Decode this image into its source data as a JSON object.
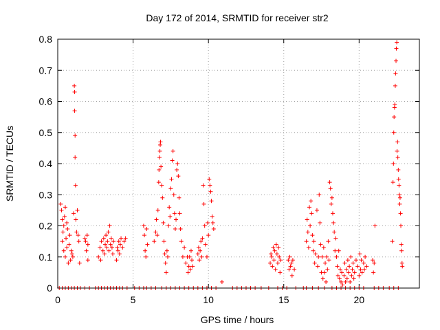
{
  "chart_data": {
    "type": "scatter",
    "title": "Day 172 of 2014, SRMTID for receiver str2",
    "xlabel": "GPS time / hours",
    "ylabel": "SRMTID / TECUs",
    "xlim": [
      0,
      24
    ],
    "ylim": [
      0,
      0.8
    ],
    "grid": true,
    "marker": "+",
    "color": "#ff0000",
    "xticks": [
      0,
      5,
      10,
      15,
      20
    ],
    "yticks": [
      0,
      0.1,
      0.2,
      0.3,
      0.4,
      0.5,
      0.6,
      0.7,
      0.8
    ],
    "xtick_labels": [
      "0",
      "5",
      "10",
      "15",
      "20"
    ],
    "ytick_labels": [
      "0",
      "0.1",
      "0.2",
      "0.3",
      "0.4",
      "0.5",
      "0.6",
      "0.7",
      "0.8"
    ],
    "series": [
      {
        "name": "str2",
        "points": [
          [
            0.2,
            0.27
          ],
          [
            0.25,
            0.25
          ],
          [
            0.3,
            0.22
          ],
          [
            0.3,
            0.15
          ],
          [
            0.35,
            0.18
          ],
          [
            0.4,
            0.2
          ],
          [
            0.4,
            0.12
          ],
          [
            0.45,
            0.23
          ],
          [
            0.5,
            0.26
          ],
          [
            0.5,
            0.1
          ],
          [
            0.55,
            0.16
          ],
          [
            0.6,
            0.21
          ],
          [
            0.6,
            0.13
          ],
          [
            0.65,
            0.19
          ],
          [
            0.7,
            0.08
          ],
          [
            0.75,
            0.14
          ],
          [
            0.8,
            0.17
          ],
          [
            0.85,
            0.09
          ],
          [
            0.9,
            0.12
          ],
          [
            0.95,
            0.11
          ],
          [
            1.0,
            0.1
          ],
          [
            1.05,
            0.24
          ],
          [
            1.1,
            0.65
          ],
          [
            1.12,
            0.63
          ],
          [
            1.12,
            0.57
          ],
          [
            1.15,
            0.49
          ],
          [
            1.15,
            0.42
          ],
          [
            1.18,
            0.33
          ],
          [
            1.2,
            0.22
          ],
          [
            1.25,
            0.18
          ],
          [
            1.3,
            0.25
          ],
          [
            1.35,
            0.17
          ],
          [
            1.4,
            0.15
          ],
          [
            1.45,
            0.08
          ],
          [
            1.8,
            0.16
          ],
          [
            1.85,
            0.15
          ],
          [
            1.9,
            0.12
          ],
          [
            1.95,
            0.17
          ],
          [
            2.0,
            0.09
          ],
          [
            2.0,
            0.14
          ],
          [
            2.7,
            0.1
          ],
          [
            2.8,
            0.13
          ],
          [
            2.85,
            0.09
          ],
          [
            2.9,
            0.15
          ],
          [
            3.0,
            0.12
          ],
          [
            3.05,
            0.16
          ],
          [
            3.1,
            0.11
          ],
          [
            3.15,
            0.14
          ],
          [
            3.2,
            0.17
          ],
          [
            3.25,
            0.13
          ],
          [
            3.3,
            0.15
          ],
          [
            3.35,
            0.18
          ],
          [
            3.4,
            0.12
          ],
          [
            3.45,
            0.2
          ],
          [
            3.5,
            0.14
          ],
          [
            3.55,
            0.16
          ],
          [
            3.6,
            0.13
          ],
          [
            3.65,
            0.11
          ],
          [
            3.7,
            0.15
          ],
          [
            3.9,
            0.09
          ],
          [
            3.95,
            0.13
          ],
          [
            4.0,
            0.12
          ],
          [
            4.05,
            0.15
          ],
          [
            4.1,
            0.11
          ],
          [
            4.15,
            0.14
          ],
          [
            4.2,
            0.16
          ],
          [
            4.3,
            0.13
          ],
          [
            4.4,
            0.15
          ],
          [
            4.5,
            0.16
          ],
          [
            5.7,
            0.2
          ],
          [
            5.75,
            0.17
          ],
          [
            5.8,
            0.12
          ],
          [
            5.85,
            0.1
          ],
          [
            5.9,
            0.19
          ],
          [
            5.95,
            0.14
          ],
          [
            6.4,
            0.15
          ],
          [
            6.5,
            0.18
          ],
          [
            6.55,
            0.22
          ],
          [
            6.6,
            0.17
          ],
          [
            6.65,
            0.25
          ],
          [
            6.7,
            0.34
          ],
          [
            6.72,
            0.38
          ],
          [
            6.75,
            0.42
          ],
          [
            6.78,
            0.44
          ],
          [
            6.8,
            0.46
          ],
          [
            6.82,
            0.47
          ],
          [
            6.85,
            0.39
          ],
          [
            6.9,
            0.33
          ],
          [
            6.95,
            0.29
          ],
          [
            7.0,
            0.21
          ],
          [
            7.05,
            0.15
          ],
          [
            7.1,
            0.11
          ],
          [
            7.15,
            0.08
          ],
          [
            7.2,
            0.05
          ],
          [
            7.25,
            0.12
          ],
          [
            7.3,
            0.1
          ],
          [
            7.35,
            0.2
          ],
          [
            7.4,
            0.26
          ],
          [
            7.45,
            0.23
          ],
          [
            7.5,
            0.32
          ],
          [
            7.55,
            0.35
          ],
          [
            7.6,
            0.41
          ],
          [
            7.65,
            0.44
          ],
          [
            7.7,
            0.3
          ],
          [
            7.75,
            0.24
          ],
          [
            7.8,
            0.19
          ],
          [
            7.85,
            0.22
          ],
          [
            7.9,
            0.38
          ],
          [
            7.95,
            0.4
          ],
          [
            8.0,
            0.36
          ],
          [
            8.05,
            0.29
          ],
          [
            8.1,
            0.24
          ],
          [
            8.15,
            0.19
          ],
          [
            8.2,
            0.15
          ],
          [
            8.3,
            0.1
          ],
          [
            8.4,
            0.13
          ],
          [
            8.5,
            0.08
          ],
          [
            8.6,
            0.1
          ],
          [
            8.65,
            0.05
          ],
          [
            8.7,
            0.07
          ],
          [
            8.75,
            0.1
          ],
          [
            8.8,
            0.06
          ],
          [
            8.85,
            0.12
          ],
          [
            8.9,
            0.09
          ],
          [
            8.95,
            0.07
          ],
          [
            9.3,
            0.11
          ],
          [
            9.35,
            0.13
          ],
          [
            9.4,
            0.09
          ],
          [
            9.45,
            0.12
          ],
          [
            9.5,
            0.15
          ],
          [
            9.55,
            0.1
          ],
          [
            9.6,
            0.16
          ],
          [
            9.65,
            0.33
          ],
          [
            9.7,
            0.27
          ],
          [
            9.75,
            0.2
          ],
          [
            9.8,
            0.14
          ],
          [
            9.9,
            0.1
          ],
          [
            9.95,
            0.21
          ],
          [
            10.0,
            0.17
          ],
          [
            10.05,
            0.35
          ],
          [
            10.1,
            0.33
          ],
          [
            10.15,
            0.31
          ],
          [
            10.2,
            0.28
          ],
          [
            10.25,
            0.23
          ],
          [
            10.3,
            0.21
          ],
          [
            10.35,
            0.19
          ],
          [
            10.9,
            0.02
          ],
          [
            14.1,
            0.08
          ],
          [
            14.15,
            0.11
          ],
          [
            14.2,
            0.1
          ],
          [
            14.25,
            0.07
          ],
          [
            14.3,
            0.13
          ],
          [
            14.35,
            0.09
          ],
          [
            14.4,
            0.12
          ],
          [
            14.45,
            0.06
          ],
          [
            14.5,
            0.14
          ],
          [
            14.55,
            0.11
          ],
          [
            14.6,
            0.08
          ],
          [
            14.65,
            0.13
          ],
          [
            14.7,
            0.1
          ],
          [
            14.75,
            0.05
          ],
          [
            14.8,
            0.09
          ],
          [
            15.3,
            0.09
          ],
          [
            15.35,
            0.06
          ],
          [
            15.4,
            0.1
          ],
          [
            15.45,
            0.07
          ],
          [
            15.5,
            0.08
          ],
          [
            15.55,
            0.04
          ],
          [
            15.6,
            0.09
          ],
          [
            15.7,
            0.06
          ],
          [
            16.5,
            0.15
          ],
          [
            16.55,
            0.22
          ],
          [
            16.6,
            0.18
          ],
          [
            16.65,
            0.13
          ],
          [
            16.7,
            0.26
          ],
          [
            16.75,
            0.2
          ],
          [
            16.8,
            0.28
          ],
          [
            16.85,
            0.24
          ],
          [
            16.9,
            0.17
          ],
          [
            16.95,
            0.12
          ],
          [
            17.0,
            0.15
          ],
          [
            17.05,
            0.08
          ],
          [
            17.1,
            0.11
          ],
          [
            17.2,
            0.25
          ],
          [
            17.25,
            0.07
          ],
          [
            17.3,
            0.1
          ],
          [
            17.35,
            0.3
          ],
          [
            17.4,
            0.21
          ],
          [
            17.45,
            0.14
          ],
          [
            17.5,
            0.05
          ],
          [
            17.55,
            0.1
          ],
          [
            17.6,
            0.03
          ],
          [
            17.65,
            0.13
          ],
          [
            17.7,
            0.05
          ],
          [
            17.75,
            0.08
          ],
          [
            17.8,
            0.02
          ],
          [
            17.85,
            0.1
          ],
          [
            17.9,
            0.06
          ],
          [
            17.95,
            0.15
          ],
          [
            18.0,
            0.09
          ],
          [
            18.05,
            0.34
          ],
          [
            18.1,
            0.32
          ],
          [
            18.15,
            0.27
          ],
          [
            18.2,
            0.29
          ],
          [
            18.25,
            0.24
          ],
          [
            18.3,
            0.21
          ],
          [
            18.35,
            0.18
          ],
          [
            18.4,
            0.12
          ],
          [
            18.45,
            0.16
          ],
          [
            18.5,
            0.1
          ],
          [
            18.55,
            0.07
          ],
          [
            18.6,
            0.04
          ],
          [
            18.65,
            0.12
          ],
          [
            18.7,
            0.03
          ],
          [
            18.75,
            0.06
          ],
          [
            18.8,
            0.02
          ],
          [
            18.85,
            0.05
          ],
          [
            18.9,
            0.01
          ],
          [
            19.0,
            0.04
          ],
          [
            19.05,
            0.08
          ],
          [
            19.1,
            0.02
          ],
          [
            19.15,
            0.06
          ],
          [
            19.2,
            0.03
          ],
          [
            19.25,
            0.09
          ],
          [
            19.3,
            0.05
          ],
          [
            19.35,
            0.07
          ],
          [
            19.4,
            0.02
          ],
          [
            19.45,
            0.1
          ],
          [
            19.5,
            0.04
          ],
          [
            19.55,
            0.06
          ],
          [
            19.6,
            0.08
          ],
          [
            19.65,
            0.03
          ],
          [
            19.7,
            0.05
          ],
          [
            19.8,
            0.09
          ],
          [
            19.9,
            0.07
          ],
          [
            20.0,
            0.04
          ],
          [
            20.05,
            0.11
          ],
          [
            20.1,
            0.06
          ],
          [
            20.15,
            0.09
          ],
          [
            20.2,
            0.05
          ],
          [
            20.3,
            0.08
          ],
          [
            20.35,
            0.06
          ],
          [
            20.4,
            0.1
          ],
          [
            20.5,
            0.07
          ],
          [
            20.9,
            0.09
          ],
          [
            20.95,
            0.05
          ],
          [
            21.0,
            0.08
          ],
          [
            21.05,
            0.2
          ],
          [
            22.2,
            0.15
          ],
          [
            22.25,
            0.34
          ],
          [
            22.28,
            0.4
          ],
          [
            22.3,
            0.5
          ],
          [
            22.32,
            0.55
          ],
          [
            22.35,
            0.58
          ],
          [
            22.37,
            0.59
          ],
          [
            22.4,
            0.65
          ],
          [
            22.42,
            0.69
          ],
          [
            22.45,
            0.73
          ],
          [
            22.47,
            0.77
          ],
          [
            22.5,
            0.79
          ],
          [
            22.52,
            0.44
          ],
          [
            22.55,
            0.47
          ],
          [
            22.57,
            0.42
          ],
          [
            22.6,
            0.38
          ],
          [
            22.62,
            0.35
          ],
          [
            22.65,
            0.33
          ],
          [
            22.67,
            0.3
          ],
          [
            22.7,
            0.27
          ],
          [
            22.72,
            0.29
          ],
          [
            22.75,
            0.24
          ],
          [
            22.77,
            0.2
          ],
          [
            22.8,
            0.14
          ],
          [
            22.82,
            0.12
          ],
          [
            22.85,
            0.08
          ],
          [
            22.87,
            0.07
          ]
        ],
        "zero_times": [
          0.1,
          0.3,
          0.5,
          0.7,
          0.9,
          1.1,
          1.3,
          1.5,
          1.8,
          2.1,
          2.5,
          2.7,
          2.9,
          3.1,
          3.3,
          3.5,
          3.7,
          3.9,
          4.1,
          4.3,
          4.6,
          5.1,
          5.4,
          5.7,
          5.9,
          6.2,
          6.5,
          6.9,
          7.2,
          7.5,
          7.8,
          8.1,
          8.4,
          8.7,
          9.0,
          9.3,
          9.6,
          9.9,
          10.2,
          10.5,
          11.6,
          11.9,
          12.2,
          12.5,
          12.8,
          13.1,
          13.5,
          14.0,
          14.6,
          14.9,
          15.2,
          15.8,
          16.3,
          16.5,
          16.9,
          17.3,
          17.7,
          18.2,
          18.5,
          18.8,
          19.1,
          19.4,
          19.7,
          20.0,
          20.3,
          21.0,
          21.3,
          21.6,
          22.0,
          22.3,
          22.6
        ]
      }
    ]
  }
}
